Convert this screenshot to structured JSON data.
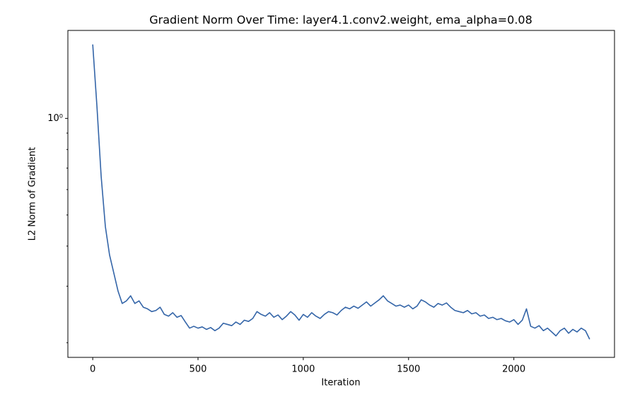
{
  "chart_data": {
    "type": "line",
    "title": "Gradient Norm Over Time: layer4.1.conv2.weight, ema_alpha=0.08",
    "xlabel": "Iteration",
    "ylabel": "L2 Norm of Gradient",
    "yscale": "log",
    "xlim": [
      -118,
      2478
    ],
    "ylim": [
      0.18,
      1.88
    ],
    "xticks": [
      0,
      500,
      1000,
      1500,
      2000
    ],
    "yticks": [
      {
        "value": 1,
        "label": "10⁰"
      }
    ],
    "yminorticks": [
      0.2,
      0.3,
      0.4,
      0.5,
      0.6,
      0.7,
      0.8,
      0.9
    ],
    "x": [
      0,
      20,
      40,
      60,
      80,
      100,
      120,
      140,
      160,
      180,
      200,
      220,
      240,
      260,
      280,
      300,
      320,
      340,
      360,
      380,
      400,
      420,
      440,
      460,
      480,
      500,
      520,
      540,
      560,
      580,
      600,
      620,
      640,
      660,
      680,
      700,
      720,
      740,
      760,
      780,
      800,
      820,
      840,
      860,
      880,
      900,
      920,
      940,
      960,
      980,
      1000,
      1020,
      1040,
      1060,
      1080,
      1100,
      1120,
      1140,
      1160,
      1180,
      1200,
      1220,
      1240,
      1260,
      1280,
      1300,
      1320,
      1340,
      1360,
      1380,
      1400,
      1420,
      1440,
      1460,
      1480,
      1500,
      1520,
      1540,
      1560,
      1580,
      1600,
      1620,
      1640,
      1660,
      1680,
      1700,
      1720,
      1740,
      1760,
      1780,
      1800,
      1820,
      1840,
      1860,
      1880,
      1900,
      1920,
      1940,
      1960,
      1980,
      2000,
      2020,
      2040,
      2060,
      2080,
      2100,
      2120,
      2140,
      2160,
      2180,
      2200,
      2220,
      2240,
      2260,
      2280,
      2300,
      2320,
      2340,
      2360
    ],
    "series": [
      {
        "color": "#3465a8",
        "values": [
          1.7,
          1.09,
          0.66,
          0.46,
          0.375,
          0.33,
          0.29,
          0.265,
          0.27,
          0.28,
          0.265,
          0.27,
          0.258,
          0.255,
          0.25,
          0.252,
          0.258,
          0.245,
          0.242,
          0.248,
          0.24,
          0.243,
          0.232,
          0.222,
          0.225,
          0.222,
          0.224,
          0.22,
          0.223,
          0.218,
          0.222,
          0.23,
          0.228,
          0.226,
          0.232,
          0.228,
          0.235,
          0.233,
          0.238,
          0.25,
          0.245,
          0.242,
          0.248,
          0.24,
          0.244,
          0.236,
          0.242,
          0.25,
          0.244,
          0.235,
          0.245,
          0.24,
          0.248,
          0.242,
          0.238,
          0.245,
          0.25,
          0.248,
          0.244,
          0.252,
          0.258,
          0.255,
          0.26,
          0.256,
          0.262,
          0.268,
          0.26,
          0.266,
          0.272,
          0.28,
          0.27,
          0.265,
          0.26,
          0.262,
          0.258,
          0.262,
          0.255,
          0.26,
          0.272,
          0.268,
          0.262,
          0.258,
          0.265,
          0.262,
          0.266,
          0.258,
          0.252,
          0.25,
          0.248,
          0.252,
          0.246,
          0.248,
          0.242,
          0.244,
          0.238,
          0.24,
          0.236,
          0.238,
          0.234,
          0.232,
          0.236,
          0.228,
          0.235,
          0.255,
          0.225,
          0.222,
          0.226,
          0.218,
          0.222,
          0.216,
          0.21,
          0.218,
          0.222,
          0.214,
          0.22,
          0.216,
          0.222,
          0.218,
          0.205
        ]
      }
    ]
  }
}
